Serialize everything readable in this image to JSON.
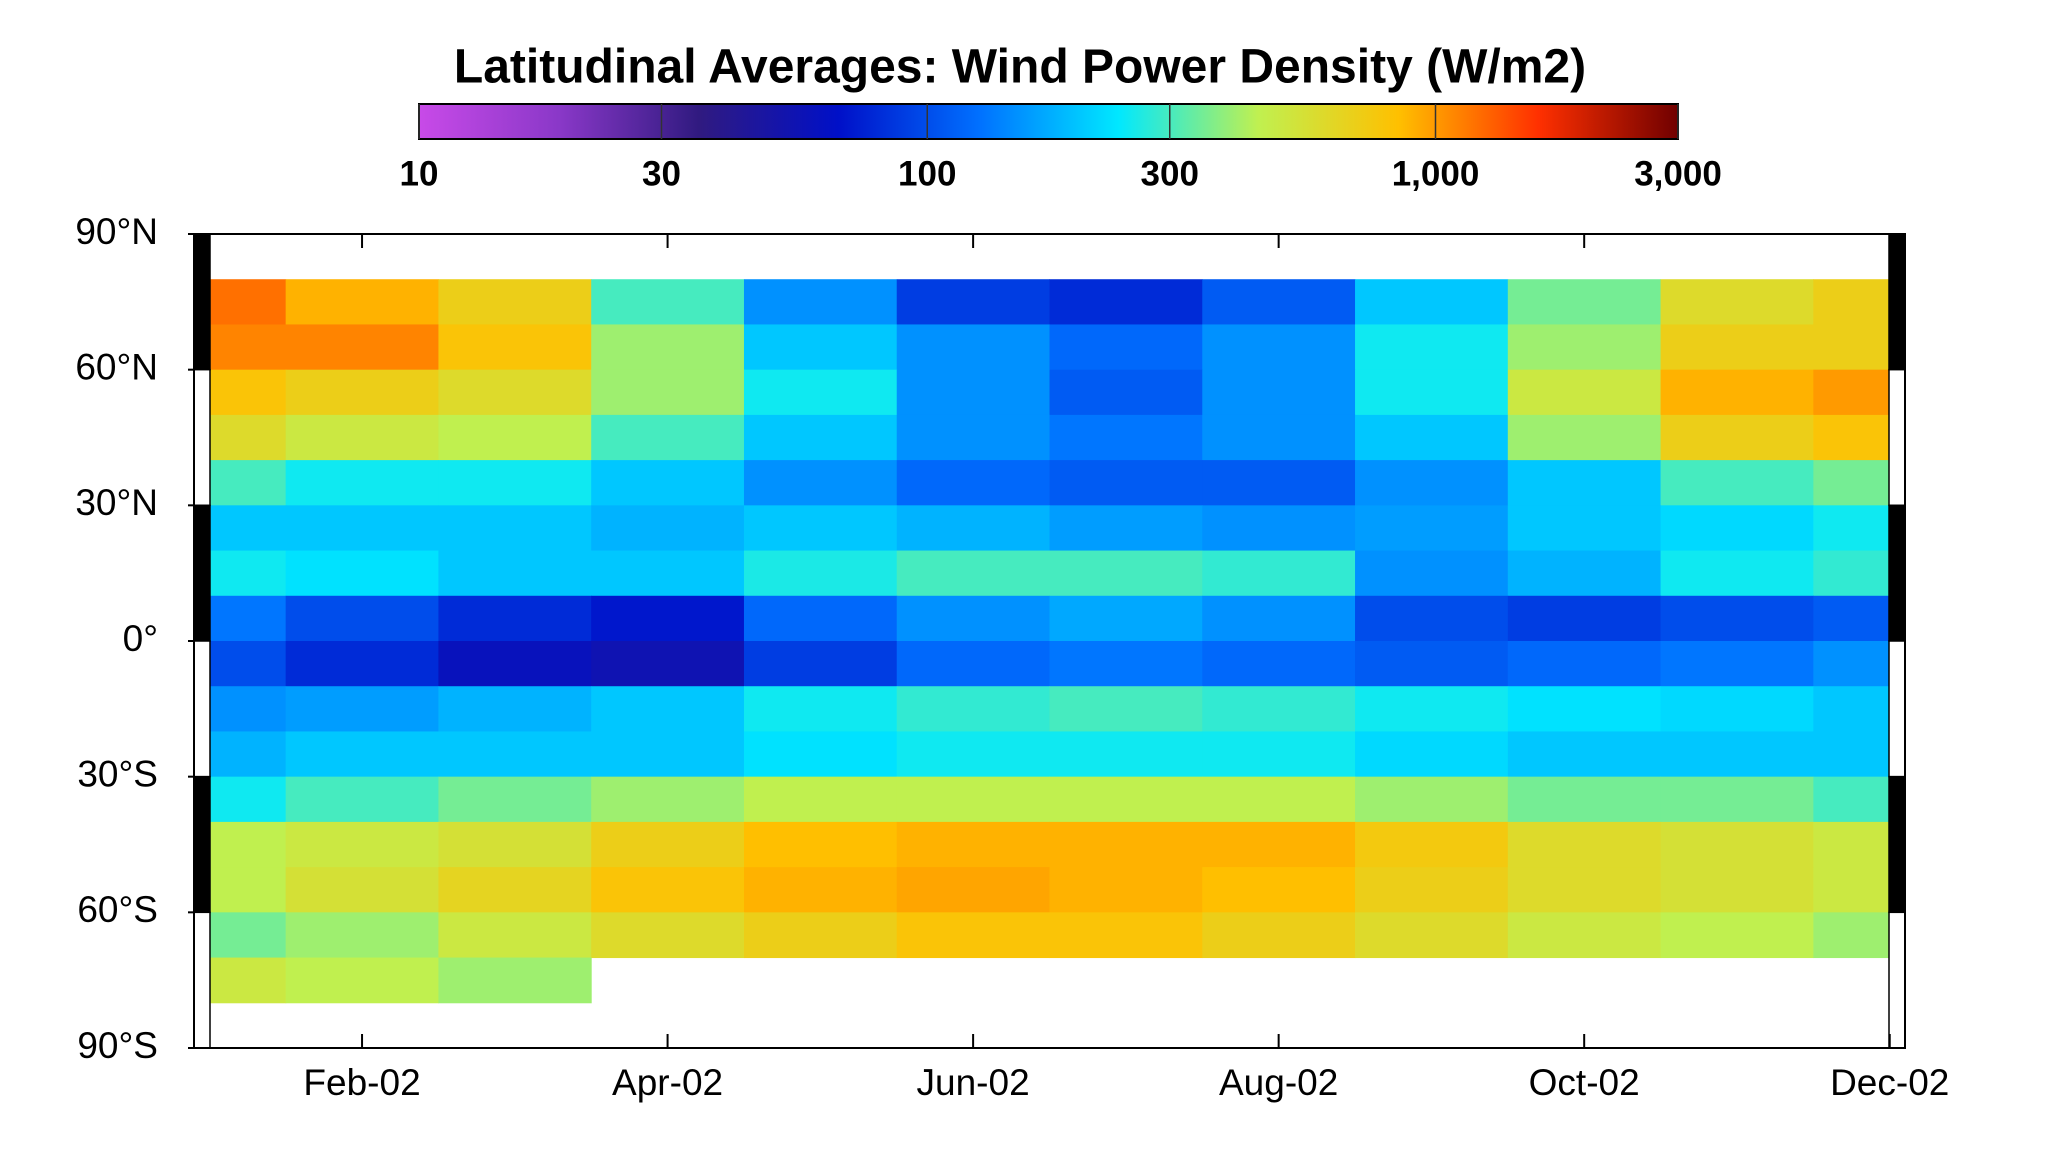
{
  "chart_data": {
    "type": "heatmap",
    "title": "Latitudinal Averages: Wind Power Density (W/m2)",
    "x": [
      1,
      2,
      3,
      4,
      5,
      6,
      7,
      8,
      9,
      10,
      11,
      12
    ],
    "y": [
      75,
      65,
      55,
      45,
      35,
      25,
      15,
      5,
      -5,
      -15,
      -25,
      -35,
      -45,
      -55,
      -65,
      -75
    ],
    "values": [
      [
        1200,
        900,
        700,
        300,
        150,
        90,
        80,
        110,
        200,
        350,
        600,
        700
      ],
      [
        1100,
        1100,
        800,
        400,
        200,
        150,
        120,
        150,
        250,
        400,
        700,
        700
      ],
      [
        800,
        700,
        600,
        400,
        250,
        150,
        110,
        150,
        250,
        500,
        900,
        1000
      ],
      [
        600,
        500,
        450,
        300,
        200,
        150,
        130,
        150,
        200,
        400,
        700,
        800
      ],
      [
        300,
        250,
        250,
        200,
        150,
        120,
        110,
        110,
        150,
        200,
        300,
        350
      ],
      [
        200,
        200,
        200,
        180,
        200,
        180,
        160,
        150,
        160,
        200,
        220,
        250
      ],
      [
        250,
        230,
        200,
        200,
        260,
        300,
        300,
        280,
        150,
        180,
        250,
        280
      ],
      [
        130,
        100,
        80,
        70,
        120,
        150,
        170,
        150,
        100,
        90,
        100,
        110
      ],
      [
        100,
        80,
        60,
        55,
        90,
        120,
        130,
        120,
        110,
        120,
        130,
        150
      ],
      [
        150,
        160,
        180,
        200,
        250,
        280,
        300,
        280,
        250,
        230,
        220,
        200
      ],
      [
        180,
        200,
        200,
        200,
        230,
        250,
        250,
        250,
        220,
        200,
        200,
        200
      ],
      [
        250,
        300,
        350,
        400,
        450,
        450,
        450,
        450,
        400,
        350,
        350,
        300
      ],
      [
        450,
        500,
        550,
        700,
        850,
        900,
        900,
        900,
        750,
        600,
        550,
        500
      ],
      [
        450,
        550,
        650,
        800,
        900,
        950,
        900,
        850,
        700,
        600,
        550,
        500
      ],
      [
        350,
        400,
        500,
        600,
        700,
        800,
        800,
        700,
        600,
        500,
        450,
        400
      ],
      [
        500,
        450,
        400,
        null,
        null,
        null,
        null,
        null,
        null,
        null,
        null,
        null
      ]
    ],
    "xlim": [
      0.9,
      12.1
    ],
    "xticks": [
      {
        "value": 2,
        "label": "Feb-02"
      },
      {
        "value": 4,
        "label": "Apr-02"
      },
      {
        "value": 6,
        "label": "Jun-02"
      },
      {
        "value": 8,
        "label": "Aug-02"
      },
      {
        "value": 10,
        "label": "Oct-02"
      },
      {
        "value": 12,
        "label": "Dec-02"
      }
    ],
    "ylim": [
      -90,
      90
    ],
    "yticks": [
      {
        "value": 90,
        "label": "90°N"
      },
      {
        "value": 60,
        "label": "60°N"
      },
      {
        "value": 30,
        "label": "30°N"
      },
      {
        "value": 0,
        "label": "0°"
      },
      {
        "value": -30,
        "label": "30°S"
      },
      {
        "value": -60,
        "label": "60°S"
      },
      {
        "value": -90,
        "label": "90°S"
      }
    ],
    "clim": [
      10,
      3000
    ],
    "color_scale": "log",
    "cticks": [
      10,
      30,
      100,
      300,
      {
        "value": 1000,
        "label": "1,000"
      },
      {
        "value": 3000,
        "label": "3,000"
      }
    ],
    "colormap": [
      "#c84ae8",
      "#8a38c8",
      "#301a80",
      "#0010c8",
      "#0070ff",
      "#00e8ff",
      "#c0f050",
      "#ffc000",
      "#ff3000",
      "#700000"
    ]
  }
}
